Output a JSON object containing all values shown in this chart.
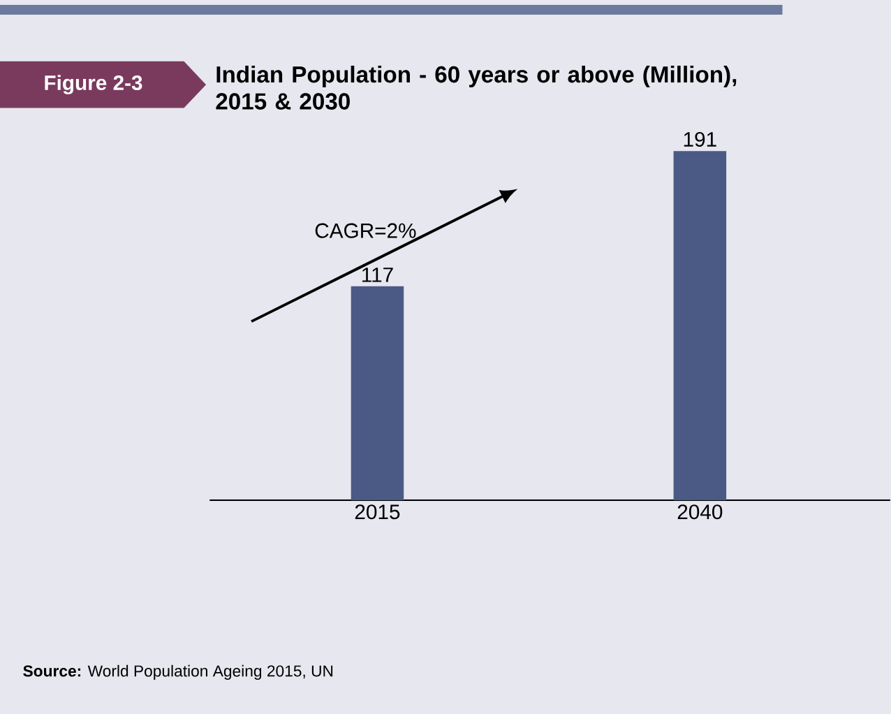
{
  "chart_data": {
    "type": "bar",
    "title": "Indian Population - 60 years or above (Million), 2015 & 2030",
    "categories": [
      "2015",
      "2040"
    ],
    "values": [
      117,
      191
    ],
    "color": "#4a5a85",
    "data_labels": true,
    "annotations": [
      "Figure 2-3",
      "CAGR=2%",
      "**Source:** World Population Ageing 2015, UN"
    ]
  }
}
